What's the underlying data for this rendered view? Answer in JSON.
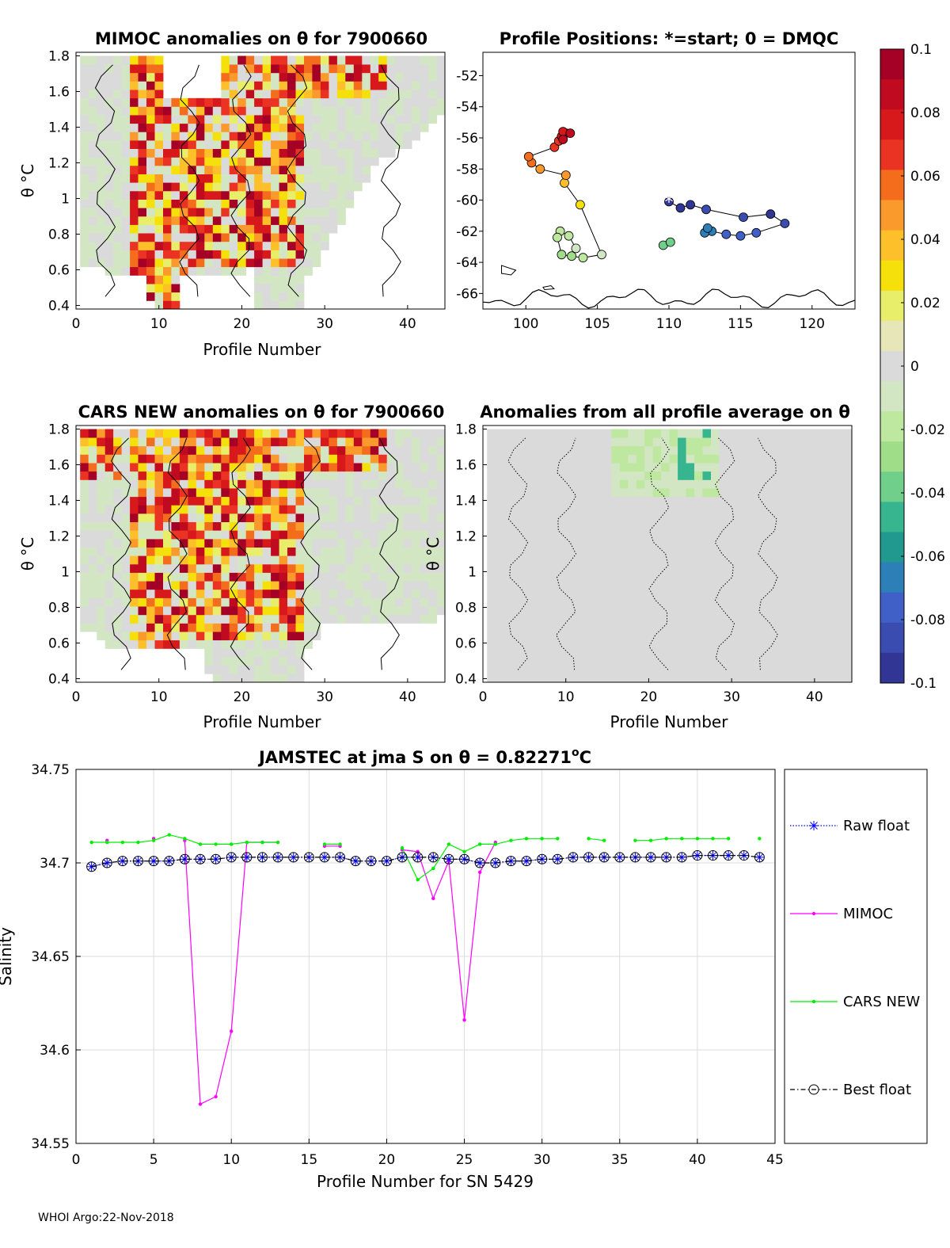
{
  "figure": {
    "footer": "WHOI Argo:22-Nov-2018",
    "float_id": "7900660",
    "colors": {
      "mimoc": "#ff00ff",
      "cars": "#00ee00",
      "raw": "#0000ff",
      "best": "#000000",
      "grid": "#dddddd",
      "neutral": "#dadada",
      "coast": "#000000"
    },
    "colormap": [
      "#a50026",
      "#c00a1f",
      "#d7191c",
      "#ea3323",
      "#f46d1c",
      "#fb9a2c",
      "#fdc02a",
      "#f5e00c",
      "#e9ee6a",
      "#e6e6b8",
      "#dadada",
      "#d3e6c4",
      "#bee7a0",
      "#9fdd88",
      "#6fcf8b",
      "#36b58f",
      "#21998f",
      "#2d7fb8",
      "#4060c8",
      "#3a4cb0",
      "#313695"
    ]
  },
  "chart_data": [
    {
      "id": "mimoc_anom",
      "type": "heatmap",
      "title": "MIMOC anomalies on θ  for 7900660",
      "xlabel": "Profile Number",
      "ylabel": "θ °C",
      "xlim": [
        0,
        44.5
      ],
      "ylim": [
        0.38,
        1.82
      ],
      "xticks": [
        "0",
        "10",
        "20",
        "30",
        "40"
      ],
      "yticks": [
        "0.4",
        "0.6",
        "0.8",
        "1",
        "1.2",
        "1.4",
        "1.6",
        "1.8"
      ],
      "coverage_bottom": [
        0.65,
        0.64,
        0.62,
        0.6,
        0.6,
        0.6,
        0.6,
        0.6,
        0.45,
        0.4,
        0.4,
        0.4,
        0.6,
        0.6,
        0.6,
        0.6,
        0.6,
        0.6,
        0.6,
        0.6,
        0.65,
        0.4,
        0.38,
        0.38,
        0.38,
        0.38,
        0.4,
        0.58,
        0.62,
        0.75,
        0.85,
        0.9,
        0.95,
        1.05,
        1.12,
        1.2,
        1.25,
        1.25,
        1.28,
        1.3,
        1.35,
        1.38,
        1.45,
        1.5
      ],
      "coverage_top": [
        1.78,
        1.8,
        1.8,
        1.8,
        1.8,
        1.8,
        1.8,
        1.8,
        1.8,
        1.8,
        1.8,
        1.8,
        1.8,
        1.8,
        1.8,
        1.8,
        1.8,
        1.8,
        1.8,
        1.8,
        1.8,
        1.8,
        1.8,
        1.8,
        1.8,
        1.8,
        1.8,
        1.8,
        1.8,
        1.8,
        1.8,
        1.8,
        1.8,
        1.8,
        1.8,
        1.8,
        1.8,
        1.8,
        1.8,
        1.8,
        1.8,
        1.8,
        1.8,
        1.8
      ],
      "gap_columns": [
        11,
        17
      ],
      "gap_from": 1.55
    },
    {
      "id": "positions",
      "type": "scatter",
      "title": "Profile Positions: *=start; 0 = DMQC",
      "xlim": [
        97,
        123
      ],
      "ylim": [
        -67,
        -50.5
      ],
      "xticks": [
        "100",
        "105",
        "110",
        "115",
        "120"
      ],
      "yticks": [
        "-52",
        "-54",
        "-56",
        "-58",
        "-60",
        "-62",
        "-64",
        "-66"
      ],
      "lon": [
        110.0,
        110.8,
        111.5,
        112.6,
        115.2,
        117.1,
        118.1,
        116.1,
        115.0,
        114.0,
        113.0,
        112.5,
        112.7,
        109.6,
        110.1,
        103.5,
        103.0,
        102.4,
        102.2,
        102.5,
        103.2,
        104.0,
        105.3,
        103.8,
        102.7,
        102.8,
        101.0,
        100.4,
        100.2,
        102.0,
        102.3,
        102.5,
        102.8,
        102.6,
        103.1,
        102.6
      ],
      "lat": [
        -60.1,
        -60.5,
        -60.3,
        -60.6,
        -61.1,
        -60.9,
        -61.5,
        -62.1,
        -62.3,
        -62.2,
        -62.0,
        -62.1,
        -61.8,
        -62.9,
        -62.7,
        -63.1,
        -62.3,
        -62.0,
        -62.4,
        -63.5,
        -63.6,
        -63.7,
        -63.5,
        -60.3,
        -58.9,
        -58.4,
        -58.0,
        -57.6,
        -57.2,
        -56.6,
        -56.2,
        -55.9,
        -55.7,
        -55.6,
        -55.7,
        -56.1
      ],
      "color_index": [
        20,
        20,
        20,
        19,
        19,
        20,
        19,
        18,
        18,
        18,
        17,
        17,
        17,
        14,
        14,
        11,
        12,
        12,
        12,
        13,
        13,
        12,
        11,
        7,
        6,
        5,
        5,
        4,
        4,
        3,
        3,
        2,
        2,
        2,
        1,
        1
      ],
      "start_marker": "*"
    },
    {
      "id": "cars_anom",
      "type": "heatmap",
      "title": "CARS NEW anomalies on θ for 7900660",
      "xlabel": "Profile Number",
      "ylabel": "θ °C",
      "xlim": [
        0,
        44.5
      ],
      "ylim": [
        0.38,
        1.82
      ],
      "xticks": [
        "0",
        "10",
        "20",
        "30",
        "40"
      ],
      "yticks": [
        "0.4",
        "0.6",
        "0.8",
        "1",
        "1.2",
        "1.4",
        "1.6",
        "1.8"
      ],
      "coverage_bottom": [
        0.7,
        0.68,
        0.62,
        0.6,
        0.6,
        0.6,
        0.6,
        0.6,
        0.6,
        0.6,
        0.6,
        0.6,
        0.6,
        0.6,
        0.6,
        0.45,
        0.38,
        0.38,
        0.38,
        0.38,
        0.38,
        0.4,
        0.42,
        0.42,
        0.4,
        0.4,
        0.42,
        0.6,
        0.62,
        0.72,
        0.72,
        0.72,
        0.72,
        0.72,
        0.72,
        0.72,
        0.72,
        0.74,
        0.74,
        0.74,
        0.74,
        0.74,
        0.74,
        0.8
      ],
      "coverage_top": [
        1.8,
        1.8,
        1.8,
        1.8,
        1.8,
        1.8,
        1.8,
        1.8,
        1.8,
        1.8,
        1.8,
        1.8,
        1.8,
        1.8,
        1.8,
        1.8,
        1.8,
        1.8,
        1.8,
        1.8,
        1.8,
        1.8,
        1.8,
        1.8,
        1.8,
        1.8,
        1.8,
        1.8,
        1.8,
        1.8,
        1.8,
        1.8,
        1.8,
        1.8,
        1.8,
        1.8,
        1.8,
        1.8,
        1.8,
        1.8,
        1.8,
        1.8,
        1.8,
        1.8
      ],
      "gap_columns": [],
      "gap_from": 1.8
    },
    {
      "id": "all_avg_anom",
      "type": "heatmap",
      "title": "Anomalies from all profile average on θ",
      "xlabel": "Profile Number",
      "ylabel": "θ °C",
      "xlim": [
        0,
        44.5
      ],
      "ylim": [
        0.38,
        1.82
      ],
      "xticks": [
        "0",
        "10",
        "20",
        "30",
        "40"
      ],
      "yticks": [
        "0.4",
        "0.6",
        "0.8",
        "1",
        "1.2",
        "1.4",
        "1.6",
        "1.8"
      ],
      "coverage_bottom": [
        0.4,
        0.4,
        0.4,
        0.4,
        0.4,
        0.4,
        0.4,
        0.4,
        0.4,
        0.4,
        0.4,
        0.4,
        0.4,
        0.4,
        0.4,
        0.4,
        0.4,
        0.4,
        0.4,
        0.4,
        0.4,
        0.4,
        0.4,
        0.4,
        0.4,
        0.4,
        0.4,
        0.4,
        0.4,
        0.4,
        0.4,
        0.4,
        0.4,
        0.4,
        0.4,
        0.4,
        0.4,
        0.4,
        0.4,
        0.4,
        0.4,
        0.4,
        0.4,
        0.4
      ],
      "coverage_top": [
        1.8,
        1.8,
        1.8,
        1.8,
        1.8,
        1.8,
        1.8,
        1.8,
        1.8,
        1.8,
        1.8,
        1.8,
        1.8,
        1.8,
        1.8,
        1.8,
        1.8,
        1.8,
        1.8,
        1.8,
        1.8,
        1.8,
        1.8,
        1.8,
        1.8,
        1.8,
        1.8,
        1.8,
        1.8,
        1.8,
        1.8,
        1.8,
        1.8,
        1.8,
        1.8,
        1.8,
        1.8,
        1.8,
        1.8,
        1.8,
        1.8,
        1.8,
        1.8,
        1.8
      ],
      "gap_columns": [],
      "gap_from": 1.8
    },
    {
      "id": "colorbar",
      "type": "heatmap",
      "clim": [
        -0.1,
        0.1
      ],
      "ticks": [
        "0.1",
        "0.08",
        "0.06",
        "0.04",
        "0.02",
        "0",
        "-0.02",
        "-0.04",
        "-0.06",
        "-0.08",
        "-0.1"
      ]
    },
    {
      "id": "salinity",
      "type": "line",
      "title_main": "JAMSTEC at jma S on θ = 0.82271",
      "title_unit": "o",
      "title_unit_suffix": "C",
      "xlabel": "Profile Number for SN 5429",
      "ylabel": "Salinity",
      "xlim": [
        0,
        45
      ],
      "ylim": [
        34.55,
        34.75
      ],
      "xticks": [
        "0",
        "5",
        "10",
        "15",
        "20",
        "25",
        "30",
        "35",
        "40",
        "45"
      ],
      "yticks": [
        "34.55",
        "34.6",
        "34.65",
        "34.7",
        "34.75"
      ],
      "grid": true,
      "legend": [
        "Raw float",
        "MIMOC",
        "CARS NEW",
        "Best float"
      ],
      "x": [
        1,
        2,
        3,
        4,
        5,
        6,
        7,
        8,
        9,
        10,
        11,
        12,
        13,
        14,
        15,
        16,
        17,
        18,
        19,
        20,
        21,
        22,
        23,
        24,
        25,
        26,
        27,
        28,
        29,
        30,
        31,
        32,
        33,
        34,
        35,
        36,
        37,
        38,
        39,
        40,
        41,
        42,
        43,
        44
      ],
      "series": [
        {
          "name": "Raw float",
          "values": [
            34.698,
            34.7,
            34.701,
            34.701,
            34.701,
            34.701,
            34.702,
            34.702,
            34.702,
            34.703,
            34.703,
            34.703,
            34.703,
            34.703,
            34.703,
            34.703,
            34.703,
            34.701,
            34.701,
            34.701,
            34.703,
            34.703,
            34.703,
            34.702,
            34.702,
            34.7,
            34.7,
            34.701,
            34.701,
            34.702,
            34.702,
            34.703,
            34.703,
            34.703,
            34.703,
            34.703,
            34.703,
            34.703,
            34.703,
            34.704,
            34.704,
            34.704,
            34.704,
            34.703
          ]
        },
        {
          "name": "Best float",
          "values": [
            34.698,
            34.7,
            34.701,
            34.701,
            34.701,
            34.701,
            34.702,
            34.702,
            34.702,
            34.703,
            34.703,
            34.703,
            34.703,
            34.703,
            34.703,
            34.703,
            34.703,
            34.701,
            34.701,
            34.701,
            34.703,
            34.703,
            34.703,
            34.702,
            34.702,
            34.7,
            34.7,
            34.701,
            34.701,
            34.702,
            34.702,
            34.703,
            34.703,
            34.703,
            34.703,
            34.703,
            34.703,
            34.703,
            34.703,
            34.704,
            34.704,
            34.704,
            34.704,
            34.703
          ]
        },
        {
          "name": "MIMOC",
          "values": [
            null,
            34.712,
            null,
            null,
            34.713,
            null,
            34.712,
            34.571,
            34.575,
            34.61,
            34.711,
            34.711,
            34.711,
            null,
            null,
            34.709,
            34.709,
            null,
            null,
            null,
            34.707,
            34.706,
            34.681,
            34.701,
            34.616,
            34.695,
            34.711,
            null,
            null,
            null,
            null,
            null,
            null,
            null,
            null,
            null,
            null,
            null,
            null,
            null,
            null,
            null,
            null,
            null
          ]
        },
        {
          "name": "CARS NEW",
          "values": [
            34.711,
            34.711,
            34.711,
            34.711,
            34.712,
            34.715,
            34.713,
            34.71,
            34.71,
            34.71,
            34.711,
            34.711,
            34.711,
            null,
            null,
            34.71,
            34.71,
            null,
            null,
            null,
            34.708,
            34.691,
            34.697,
            34.71,
            34.706,
            34.71,
            34.71,
            34.712,
            34.713,
            34.713,
            34.713,
            null,
            34.713,
            34.712,
            null,
            34.712,
            34.712,
            34.713,
            34.713,
            34.713,
            34.713,
            34.713,
            null,
            34.713
          ]
        }
      ]
    }
  ]
}
